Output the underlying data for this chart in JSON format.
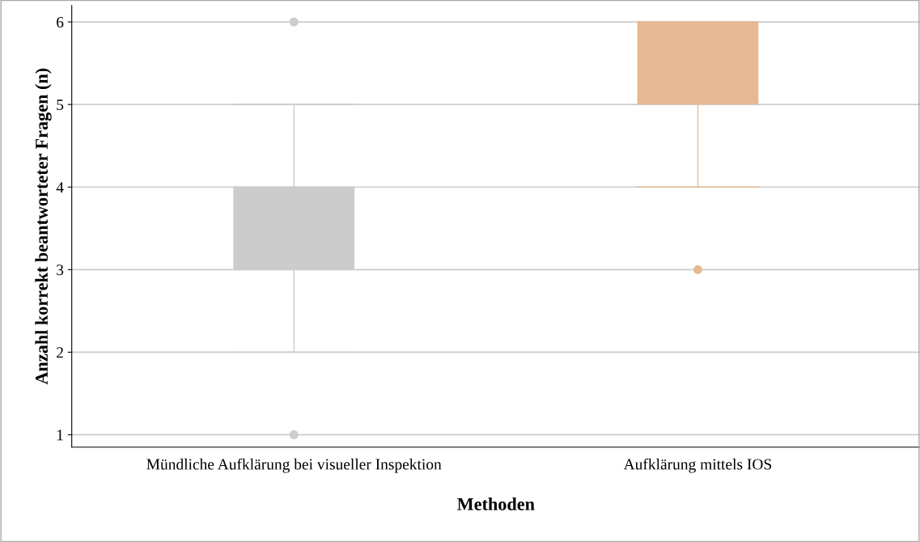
{
  "chart_data": {
    "type": "box",
    "xlabel": "Methoden",
    "ylabel": "Anzahl korrekt beantworteter Fragen (n)",
    "categories": [
      "Mündliche Aufklärung bei visueller Inspektion",
      "Aufklärung mittels IOS"
    ],
    "colors": [
      "#cccccc",
      "#e6b993"
    ],
    "boxes": [
      {
        "low": 2,
        "q1": 3,
        "median": 4,
        "q3": 4,
        "high": 5,
        "outliers": [
          1,
          6
        ]
      },
      {
        "low": 4,
        "q1": 5,
        "median": 6,
        "q3": 6,
        "high": 6,
        "outliers": [
          3
        ]
      }
    ],
    "ylim": [
      0.85,
      6.2
    ],
    "yticks": [
      1,
      2,
      3,
      4,
      5,
      6
    ],
    "grid": "y"
  }
}
